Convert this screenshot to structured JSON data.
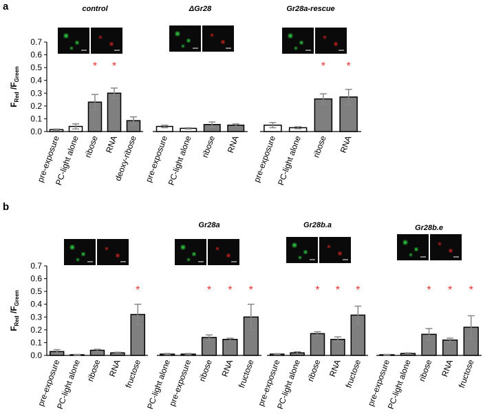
{
  "panel_labels": [
    "a",
    "b"
  ],
  "chart_data": [
    {
      "type": "bar",
      "title": "control",
      "categories": [
        "pre-exposure",
        "PC-light alone",
        "ribose",
        "RNA",
        "deoxy-ribose"
      ],
      "values": [
        0.015,
        0.04,
        0.23,
        0.3,
        0.085
      ],
      "errors": [
        0.005,
        0.02,
        0.06,
        0.04,
        0.03
      ],
      "bar_colors": [
        "#ffffff",
        "#ffffff",
        "#7f7f7f",
        "#7f7f7f",
        "#7f7f7f"
      ],
      "significant": [
        false,
        false,
        true,
        true,
        false
      ],
      "marker": "*",
      "ylim": [
        0,
        0.7
      ],
      "yticks": [
        0.0,
        0.1,
        0.2,
        0.3,
        0.4,
        0.5,
        0.6,
        0.7
      ],
      "ylabel": {
        "f1": "F",
        "s1": "Red",
        "f2": " /F",
        "s2": "Green"
      }
    },
    {
      "type": "bar",
      "title": "ΔGr28",
      "categories": [
        "pre-exposure",
        "PC-light alone",
        "ribose",
        "RNA"
      ],
      "values": [
        0.04,
        0.025,
        0.055,
        0.05
      ],
      "errors": [
        0.01,
        0.005,
        0.02,
        0.01
      ],
      "bar_colors": [
        "#ffffff",
        "#ffffff",
        "#7f7f7f",
        "#7f7f7f"
      ],
      "significant": [
        false,
        false,
        false,
        false
      ],
      "ylim": [
        0,
        0.7
      ]
    },
    {
      "type": "bar",
      "title": "Gr28a-rescue",
      "categories": [
        "pre-exposure",
        "PC-light alone",
        "ribose",
        "RNA"
      ],
      "values": [
        0.05,
        0.03,
        0.255,
        0.27
      ],
      "errors": [
        0.02,
        0.008,
        0.04,
        0.06
      ],
      "bar_colors": [
        "#ffffff",
        "#ffffff",
        "#7f7f7f",
        "#7f7f7f"
      ],
      "significant": [
        false,
        false,
        true,
        true
      ],
      "marker": "*",
      "ylim": [
        0,
        0.7
      ]
    },
    {
      "type": "bar",
      "categories": [
        "pre-exposure",
        "PC-light alone",
        "ribose",
        "RNA",
        "fructose"
      ],
      "values": [
        0.03,
        0.005,
        0.04,
        0.02,
        0.32
      ],
      "errors": [
        0.015,
        0.003,
        0.008,
        0.005,
        0.08
      ],
      "bar_colors": [
        "#7f7f7f",
        "#7f7f7f",
        "#7f7f7f",
        "#7f7f7f",
        "#7f7f7f"
      ],
      "significant": [
        false,
        false,
        false,
        false,
        true
      ],
      "marker": "*",
      "ylim": [
        0,
        0.7
      ],
      "yticks": [
        0.0,
        0.1,
        0.2,
        0.3,
        0.4,
        0.5,
        0.6,
        0.7
      ],
      "ylabel": {
        "f1": "F",
        "s1": "Red",
        "f2": " /F",
        "s2": "Green"
      }
    },
    {
      "type": "bar",
      "title": "Gr28a",
      "categories": [
        "PC-light alone",
        "pre-exposure",
        "ribose",
        "RNA",
        "fructose"
      ],
      "values": [
        0.01,
        0.01,
        0.14,
        0.125,
        0.3
      ],
      "errors": [
        0.005,
        0.005,
        0.02,
        0.01,
        0.1
      ],
      "bar_colors": [
        "#7f7f7f",
        "#7f7f7f",
        "#7f7f7f",
        "#7f7f7f",
        "#7f7f7f"
      ],
      "significant": [
        false,
        false,
        true,
        true,
        true
      ],
      "marker": "*",
      "ylim": [
        0,
        0.7
      ]
    },
    {
      "type": "bar",
      "title": "Gr28b.a",
      "categories": [
        "pre-exposure",
        "PC-light alone",
        "ribose",
        "RNA",
        "fructose"
      ],
      "values": [
        0.01,
        0.02,
        0.17,
        0.125,
        0.315
      ],
      "errors": [
        0.004,
        0.008,
        0.015,
        0.02,
        0.07
      ],
      "bar_colors": [
        "#7f7f7f",
        "#7f7f7f",
        "#7f7f7f",
        "#7f7f7f",
        "#7f7f7f"
      ],
      "significant": [
        false,
        false,
        true,
        true,
        true
      ],
      "marker": "*",
      "ylim": [
        0,
        0.7
      ]
    },
    {
      "type": "bar",
      "title": "Gr28b.e",
      "categories": [
        "pre-exposure",
        "PC-light alone",
        "ribose",
        "RNA",
        "fructose"
      ],
      "values": [
        0.005,
        0.015,
        0.165,
        0.12,
        0.22
      ],
      "errors": [
        0.003,
        0.005,
        0.045,
        0.015,
        0.09
      ],
      "bar_colors": [
        "#7f7f7f",
        "#7f7f7f",
        "#7f7f7f",
        "#7f7f7f",
        "#7f7f7f"
      ],
      "significant": [
        false,
        false,
        true,
        true,
        true
      ],
      "marker": "*",
      "ylim": [
        0,
        0.7
      ]
    }
  ]
}
